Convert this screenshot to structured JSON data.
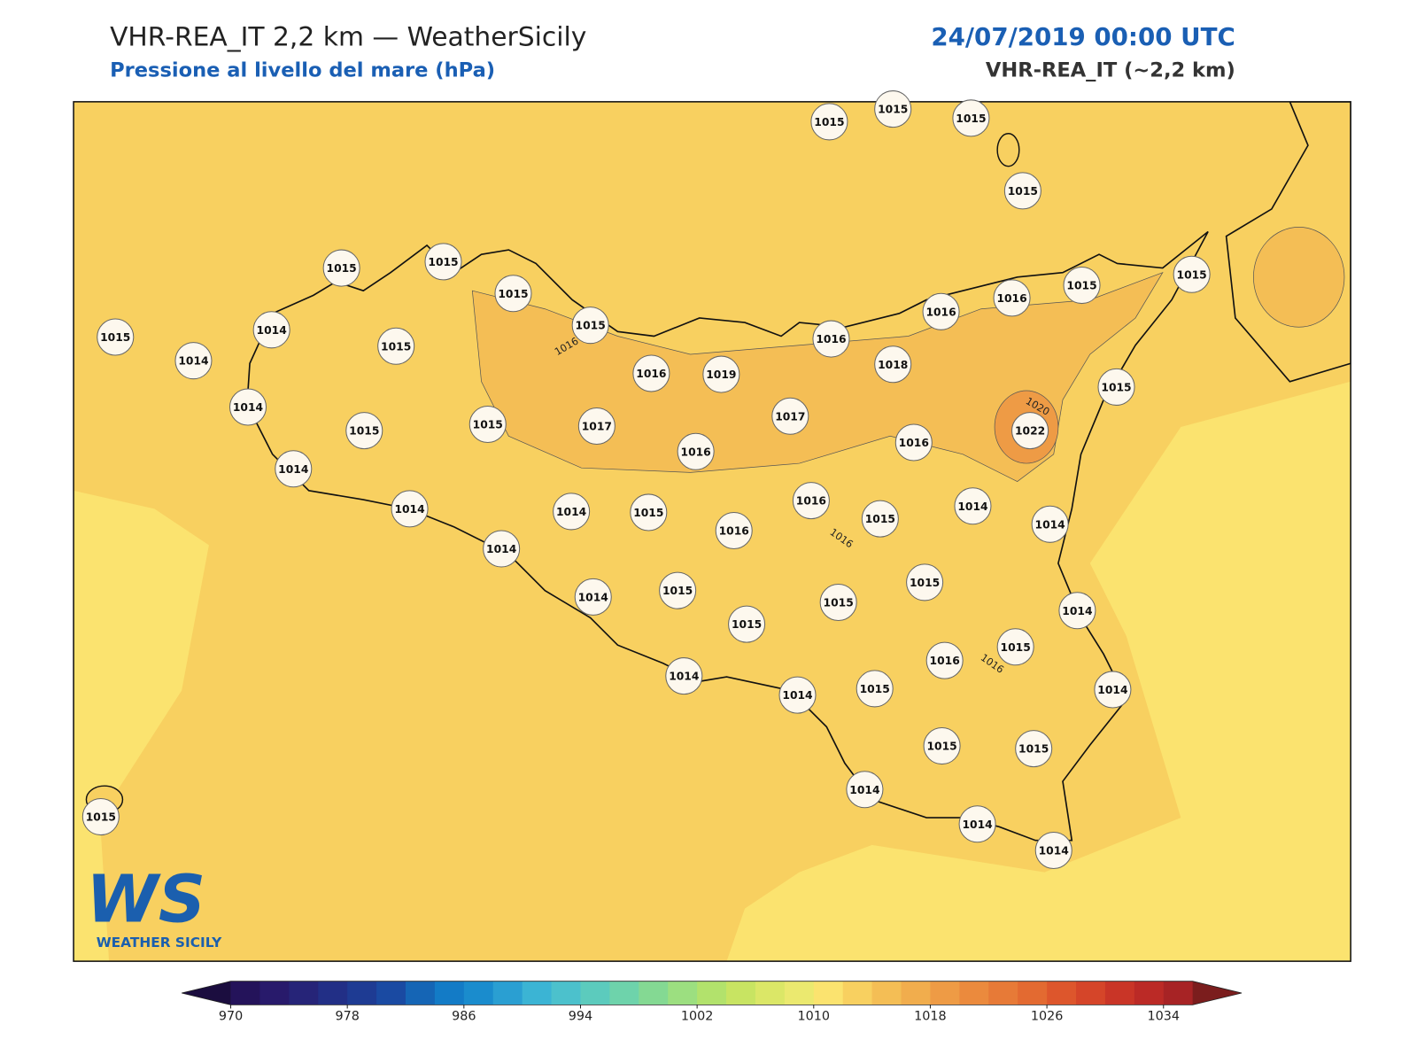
{
  "header": {
    "title": "VHR-REA_IT 2,2 km — WeatherSicily",
    "subtitle": "Pressione al livello del mare (hPa)",
    "datetime": "24/07/2019 00:00 UTC",
    "model": "VHR-REA_IT (~2,2 km)"
  },
  "map": {
    "stations": [
      1015,
      1015,
      1015,
      1015,
      1015,
      1015,
      1015,
      1015,
      1015,
      1016,
      1016,
      1015,
      1014,
      1015,
      1015,
      1016,
      1014,
      1016,
      1019,
      1018,
      1015,
      1014,
      1017,
      1015,
      1015,
      1017,
      1022,
      1016,
      1016,
      1014,
      1014,
      1014,
      1015,
      1016,
      1015,
      1014,
      1014,
      1016,
      1014,
      1015,
      1014,
      1015,
      1015,
      1014,
      1015,
      1016,
      1015,
      1014,
      1014,
      1014,
      1015,
      1015,
      1015,
      1014,
      1014,
      1014,
      1015
    ],
    "contour_labels": [
      1016,
      1020,
      1016,
      1016
    ]
  },
  "colorbar": {
    "range": [
      970,
      1036
    ],
    "ticks": [
      970,
      978,
      986,
      994,
      1002,
      1010,
      1018,
      1026,
      1034
    ],
    "colors": [
      "#24135a",
      "#281a6b",
      "#262478",
      "#222f86",
      "#1e3b93",
      "#1a4aa2",
      "#1565b5",
      "#137bc6",
      "#1a8ccd",
      "#2a9fd2",
      "#3bb4d4",
      "#4cc1cc",
      "#5ccbbd",
      "#6ed3ab",
      "#84d993",
      "#9cdf80",
      "#b2e26c",
      "#c8e462",
      "#dbe767",
      "#ebe96f",
      "#fbe36f",
      "#f8d060",
      "#f4be55",
      "#f1ad4d",
      "#ee9b45",
      "#eb8a3d",
      "#e77a37",
      "#e36a31",
      "#dd562c",
      "#d54529",
      "#c93527",
      "#bb2a26",
      "#a72325"
    ],
    "under_color": "#1b0d3f",
    "over_color": "#7b1d1d"
  },
  "logo": {
    "mark": "WS",
    "name": "WEATHER SICILY"
  }
}
